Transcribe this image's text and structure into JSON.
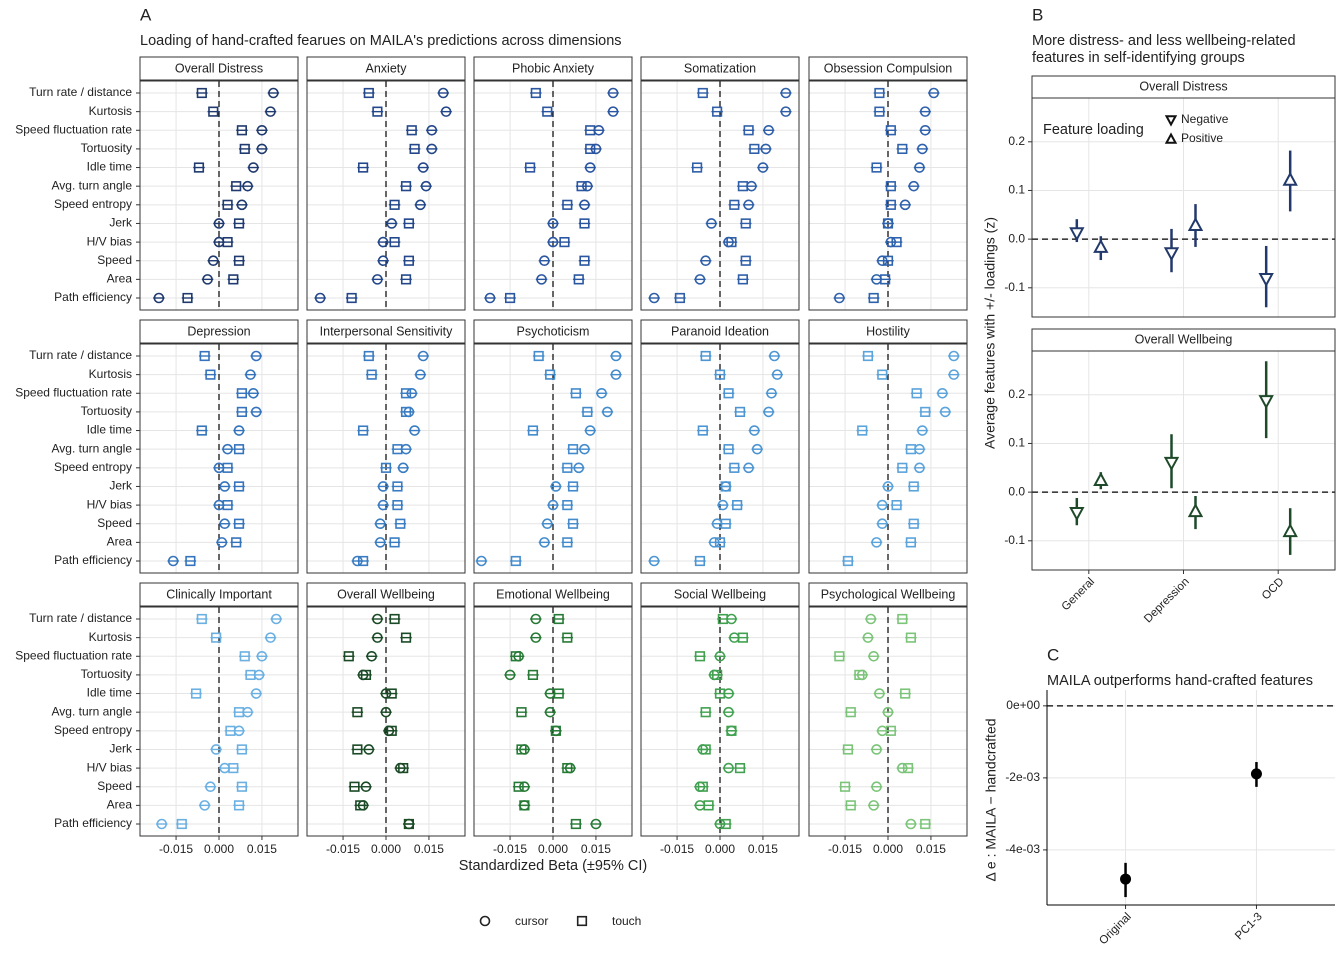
{
  "chart_data": [
    {
      "type": "facet_dot",
      "label": "A",
      "title": "Loading of hand-crafted fearues on MAILA's predictions across dimensions",
      "xlabel": "Standardized Beta (±95% CI)",
      "features": [
        "Turn rate / distance",
        "Kurtosis",
        "Speed fluctuation rate",
        "Tortuosity",
        "Idle time",
        "Avg. turn angle",
        "Speed entropy",
        "Jerk",
        "H/V bias",
        "Speed",
        "Area",
        "Path efficiency"
      ],
      "groups": [
        {
          "name": "cursor",
          "marker": "circle"
        },
        {
          "name": "touch",
          "marker": "square"
        }
      ],
      "xlim": [
        -0.0276,
        0.0276
      ],
      "xticks": [
        -0.015,
        {
          "value": 0,
          "label": "0.000"
        },
        0.015
      ],
      "vline": 0,
      "ci": 0.002,
      "grid": true,
      "facets": [
        {
          "name": "Overall Distress",
          "color": "#1f3a6e",
          "values": [
            [
              0.019,
              0.018,
              0.015,
              0.015,
              0.012,
              0.01,
              0.008,
              0.0,
              0.0,
              -0.002,
              -0.004,
              -0.021
            ],
            [
              -0.006,
              -0.002,
              0.008,
              0.009,
              -0.007,
              0.006,
              0.003,
              0.007,
              0.003,
              0.007,
              0.005,
              -0.011
            ]
          ]
        },
        {
          "name": "Anxiety",
          "color": "#23478a",
          "values": [
            [
              0.02,
              0.021,
              0.016,
              0.016,
              0.013,
              0.014,
              0.012,
              0.002,
              -0.001,
              -0.001,
              -0.003,
              -0.023
            ],
            [
              -0.006,
              -0.003,
              0.009,
              0.01,
              -0.008,
              0.007,
              0.003,
              0.008,
              0.003,
              0.008,
              0.007,
              -0.012
            ]
          ]
        },
        {
          "name": "Phobic Anxiety",
          "color": "#2a55a0",
          "values": [
            [
              0.021,
              0.021,
              0.016,
              0.015,
              0.013,
              0.012,
              0.011,
              0.0,
              0.0,
              -0.003,
              -0.004,
              -0.022
            ],
            [
              -0.006,
              -0.002,
              0.013,
              0.013,
              -0.008,
              0.01,
              0.005,
              0.011,
              0.004,
              0.011,
              0.009,
              -0.015
            ]
          ]
        },
        {
          "name": "Somatization",
          "color": "#2f5fa8",
          "values": [
            [
              0.023,
              0.023,
              0.017,
              0.016,
              0.015,
              0.011,
              0.01,
              -0.003,
              0.003,
              -0.005,
              -0.007,
              -0.023
            ],
            [
              -0.006,
              -0.001,
              0.01,
              0.012,
              -0.008,
              0.008,
              0.005,
              0.009,
              0.004,
              0.009,
              0.008,
              -0.014
            ]
          ]
        },
        {
          "name": "Obsession Compulsion",
          "color": "#2f62ad",
          "values": [
            [
              0.016,
              0.013,
              0.013,
              0.012,
              0.011,
              0.009,
              0.006,
              0.0,
              0.001,
              -0.002,
              -0.004,
              -0.017
            ],
            [
              -0.003,
              -0.003,
              0.001,
              0.005,
              -0.004,
              0.001,
              0.001,
              0.0,
              0.003,
              0.0,
              -0.001,
              -0.005
            ]
          ]
        },
        {
          "name": "Depression",
          "color": "#3574bc",
          "values": [
            [
              0.013,
              0.011,
              0.012,
              0.013,
              0.007,
              0.003,
              0.0,
              0.002,
              0.0,
              0.002,
              0.001,
              -0.016
            ],
            [
              -0.005,
              -0.003,
              0.008,
              0.008,
              -0.006,
              0.007,
              0.003,
              0.007,
              0.003,
              0.007,
              0.006,
              -0.01
            ]
          ]
        },
        {
          "name": "Interpersonal Sensitivity",
          "color": "#3a7cc2",
          "values": [
            [
              0.013,
              0.012,
              0.009,
              0.008,
              0.01,
              0.007,
              0.006,
              -0.001,
              -0.001,
              -0.002,
              -0.002,
              -0.01
            ],
            [
              -0.006,
              -0.005,
              0.007,
              0.007,
              -0.008,
              0.004,
              0.0,
              0.004,
              0.004,
              0.005,
              0.003,
              -0.008
            ]
          ]
        },
        {
          "name": "Psychoticism",
          "color": "#438bcc",
          "values": [
            [
              0.022,
              0.022,
              0.017,
              0.019,
              0.013,
              0.011,
              0.009,
              0.001,
              0.0,
              -0.002,
              -0.003,
              -0.025
            ],
            [
              -0.005,
              -0.001,
              0.008,
              0.012,
              -0.007,
              0.007,
              0.005,
              0.007,
              0.005,
              0.007,
              0.005,
              -0.013
            ]
          ]
        },
        {
          "name": "Paranoid Ideation",
          "color": "#4c95d2",
          "values": [
            [
              0.019,
              0.02,
              0.018,
              0.017,
              0.012,
              0.013,
              0.01,
              0.002,
              0.001,
              -0.001,
              -0.002,
              -0.023
            ],
            [
              -0.005,
              0.0,
              0.003,
              0.007,
              -0.006,
              0.003,
              0.005,
              0.002,
              0.006,
              0.002,
              0.0,
              -0.007
            ]
          ]
        },
        {
          "name": "Hostility",
          "color": "#5ba3db",
          "values": [
            [
              0.023,
              0.023,
              0.019,
              0.02,
              0.012,
              0.011,
              0.011,
              0.0,
              -0.002,
              -0.002,
              -0.004,
              null
            ],
            [
              -0.007,
              -0.002,
              0.01,
              0.013,
              -0.009,
              0.008,
              0.005,
              0.009,
              0.003,
              0.009,
              0.008,
              -0.014
            ]
          ]
        },
        {
          "name": "Clinically Important",
          "color": "#6bb0e2",
          "values": [
            [
              0.02,
              0.018,
              0.015,
              0.014,
              0.013,
              0.01,
              0.007,
              -0.001,
              0.002,
              -0.003,
              -0.005,
              -0.02
            ],
            [
              -0.006,
              -0.001,
              0.009,
              0.011,
              -0.008,
              0.007,
              0.004,
              0.008,
              0.005,
              0.008,
              0.007,
              -0.013
            ]
          ]
        },
        {
          "name": "Overall Wellbeing",
          "color": "#1b4a26",
          "values": [
            [
              -0.003,
              -0.003,
              -0.005,
              -0.008,
              0.0,
              0.0,
              0.001,
              -0.006,
              0.005,
              -0.007,
              -0.008,
              0.008
            ],
            [
              0.003,
              0.007,
              -0.013,
              -0.007,
              0.002,
              -0.01,
              0.002,
              -0.01,
              0.006,
              -0.011,
              -0.009,
              0.008
            ]
          ]
        },
        {
          "name": "Emotional Wellbeing",
          "color": "#277a36",
          "values": [
            [
              -0.006,
              -0.006,
              -0.012,
              -0.015,
              -0.001,
              -0.001,
              0.001,
              -0.01,
              0.006,
              -0.01,
              -0.01,
              0.015
            ],
            [
              0.002,
              0.005,
              -0.013,
              -0.007,
              0.002,
              -0.011,
              0.001,
              -0.011,
              0.005,
              -0.012,
              -0.01,
              0.008
            ]
          ]
        },
        {
          "name": "Social Wellbeing",
          "color": "#41a150",
          "values": [
            [
              0.004,
              0.005,
              0.0,
              -0.002,
              0.003,
              0.003,
              0.004,
              -0.006,
              0.003,
              -0.007,
              -0.007,
              0.0
            ],
            [
              0.001,
              0.008,
              -0.007,
              -0.001,
              0.0,
              -0.005,
              0.004,
              -0.005,
              0.007,
              -0.006,
              -0.004,
              0.002
            ]
          ]
        },
        {
          "name": "Psychological Wellbeing",
          "color": "#7cc47a",
          "values": [
            [
              -0.006,
              -0.007,
              -0.005,
              -0.009,
              -0.003,
              0.0,
              -0.002,
              -0.004,
              0.005,
              -0.004,
              -0.005,
              0.008
            ],
            [
              0.005,
              0.008,
              -0.017,
              -0.01,
              0.006,
              -0.013,
              0.001,
              -0.014,
              0.007,
              -0.015,
              -0.013,
              0.013
            ]
          ]
        }
      ]
    },
    {
      "type": "facet_pointrange",
      "label": "B",
      "title": [
        "More distress- and less wellbeing-related",
        "features in self-identifying groups"
      ],
      "ylabel": "Average features with +/- loadings (z)",
      "categories": [
        "General",
        "Depression",
        "OCD"
      ],
      "legend_title": "Feature loading",
      "groups": [
        {
          "name": "Negative",
          "marker": "down"
        },
        {
          "name": "Positive",
          "marker": "up"
        }
      ],
      "ylim": [
        -0.16,
        0.29
      ],
      "yticks": [
        0.2,
        0.1,
        {
          "value": 0,
          "label": "0.0"
        },
        -0.1
      ],
      "hline": 0,
      "grid": true,
      "facets": [
        {
          "name": "Overall Distress",
          "color": "#22396b",
          "values": [
            [
              0.012,
              -0.029,
              -0.082
            ],
            [
              -0.016,
              0.029,
              0.122
            ]
          ],
          "lo": [
            [
              -0.006,
              -0.068,
              -0.14
            ],
            [
              -0.043,
              -0.016,
              0.057
            ]
          ],
          "hi": [
            [
              0.041,
              0.021,
              -0.014
            ],
            [
              0.006,
              0.072,
              0.182
            ]
          ]
        },
        {
          "name": "Overall Wellbeing",
          "color": "#1f4a2a",
          "values": [
            [
              -0.043,
              0.06,
              0.187
            ],
            [
              0.025,
              -0.039,
              -0.08
            ]
          ],
          "lo": [
            [
              -0.068,
              0.008,
              0.111
            ],
            [
              0.006,
              -0.076,
              -0.129
            ]
          ],
          "hi": [
            [
              -0.012,
              0.119,
              0.269
            ],
            [
              0.041,
              -0.008,
              -0.033
            ]
          ]
        }
      ]
    },
    {
      "type": "pointrange",
      "label": "C",
      "title": "MAILA outperforms hand-crafted features",
      "ylabel": "Δ e : MAILA − handcrafted",
      "categories": [
        "Original",
        "PC1-3"
      ],
      "values": [
        -0.00481,
        -0.00189
      ],
      "lo": [
        -0.00531,
        -0.00225
      ],
      "hi": [
        -0.00436,
        -0.00156
      ],
      "color": "#000000",
      "ylim": [
        -0.00553,
        0.00044
      ],
      "yticks": [
        {
          "value": 0,
          "label": "0e+00"
        },
        {
          "value": -0.002,
          "label": "-2e-03"
        },
        {
          "value": -0.004,
          "label": "-4e-03"
        }
      ],
      "hline": 0,
      "grid": true
    }
  ]
}
